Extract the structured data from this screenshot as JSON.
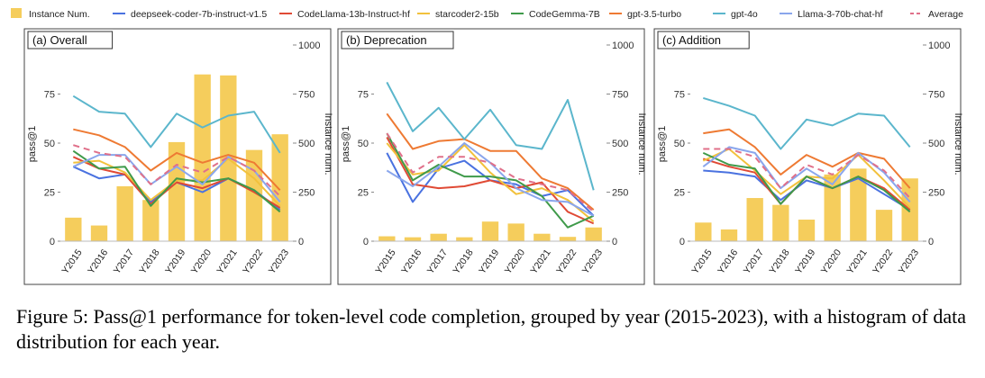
{
  "legend": [
    {
      "name": "Instance Num.",
      "color": "#f5cd5c",
      "kind": "bar"
    },
    {
      "name": "deepseek-coder-7b-instruct-v1.5",
      "color": "#4a72e0",
      "kind": "line"
    },
    {
      "name": "CodeLlama-13b-Instruct-hf",
      "color": "#e04a35",
      "kind": "line"
    },
    {
      "name": "starcoder2-15b",
      "color": "#f2c13c",
      "kind": "line"
    },
    {
      "name": "CodeGemma-7B",
      "color": "#3f9a4a",
      "kind": "line"
    },
    {
      "name": "gpt-3.5-turbo",
      "color": "#ee7a33",
      "kind": "line"
    },
    {
      "name": "gpt-4o",
      "color": "#5bb6cc",
      "kind": "line"
    },
    {
      "name": "Llama-3-70b-chat-hf",
      "color": "#8aa6ec",
      "kind": "line"
    },
    {
      "name": "Average",
      "color": "#e0708a",
      "kind": "dash"
    }
  ],
  "chart_data": [
    {
      "type": "bar+line",
      "title": "(a) Overall",
      "ylabel": "pass@1",
      "y2label": "Instance num.",
      "ylim": [
        0,
        100
      ],
      "y2lim": [
        0,
        1000
      ],
      "yticks": [
        "0",
        "25",
        "50",
        "75"
      ],
      "y2ticks": [
        "0",
        "250",
        "500",
        "750",
        "1000"
      ],
      "categories": [
        "Y2015",
        "Y2016",
        "Y2017",
        "Y2018",
        "Y2019",
        "Y2020",
        "Y2021",
        "Y2022",
        "Y2023"
      ],
      "bars": [
        120,
        80,
        280,
        210,
        505,
        850,
        845,
        465,
        545
      ],
      "series": [
        {
          "name": "deepseek-coder-7b-instruct-v1.5",
          "values": [
            38,
            32,
            34,
            20,
            30,
            25,
            32,
            26,
            16
          ]
        },
        {
          "name": "CodeLlama-13b-Instruct-hf",
          "values": [
            43,
            37,
            34,
            19,
            30,
            27,
            32,
            25,
            17
          ]
        },
        {
          "name": "starcoder2-15b",
          "values": [
            40,
            41,
            35,
            21,
            31,
            31,
            42,
            32,
            18
          ]
        },
        {
          "name": "CodeGemma-7B",
          "values": [
            46,
            37,
            38,
            18,
            32,
            30,
            32,
            26,
            15
          ]
        },
        {
          "name": "gpt-3.5-turbo",
          "values": [
            57,
            54,
            48,
            36,
            45,
            40,
            44,
            40,
            26
          ]
        },
        {
          "name": "gpt-4o",
          "values": [
            74,
            66,
            65,
            48,
            65,
            58,
            64,
            66,
            45
          ]
        },
        {
          "name": "Llama-3-70b-chat-hf",
          "values": [
            38,
            44,
            44,
            29,
            38,
            29,
            43,
            36,
            20
          ]
        },
        {
          "name": "Average",
          "values": [
            49,
            45,
            43,
            29,
            39,
            35,
            43,
            36,
            23
          ]
        }
      ]
    },
    {
      "type": "bar+line",
      "title": "(b) Deprecation",
      "ylabel": "pass@1",
      "y2label": "Instance num.",
      "ylim": [
        0,
        100
      ],
      "y2lim": [
        0,
        1000
      ],
      "yticks": [
        "0",
        "25",
        "50",
        "75"
      ],
      "y2ticks": [
        "0",
        "250",
        "500",
        "750",
        "1000"
      ],
      "categories": [
        "Y2015",
        "Y2016",
        "Y2017",
        "Y2018",
        "Y2019",
        "Y2020",
        "Y2021",
        "Y2022",
        "Y2023"
      ],
      "bars": [
        25,
        20,
        38,
        20,
        100,
        90,
        38,
        22,
        70
      ],
      "series": [
        {
          "name": "deepseek-coder-7b-instruct-v1.5",
          "values": [
            45,
            20,
            37,
            41,
            31,
            29,
            23,
            26,
            13
          ]
        },
        {
          "name": "CodeLlama-13b-Instruct-hf",
          "values": [
            53,
            29,
            27,
            28,
            31,
            27,
            30,
            15,
            9
          ]
        },
        {
          "name": "starcoder2-15b",
          "values": [
            50,
            34,
            36,
            49,
            35,
            24,
            27,
            21,
            10
          ]
        },
        {
          "name": "CodeGemma-7B",
          "values": [
            55,
            31,
            39,
            33,
            33,
            31,
            23,
            7,
            13
          ]
        },
        {
          "name": "gpt-3.5-turbo",
          "values": [
            65,
            47,
            51,
            52,
            46,
            46,
            32,
            27,
            16
          ]
        },
        {
          "name": "gpt-4o",
          "values": [
            81,
            56,
            68,
            52,
            67,
            49,
            47,
            72,
            26
          ]
        },
        {
          "name": "Llama-3-70b-chat-hf",
          "values": [
            36,
            28,
            38,
            50,
            40,
            27,
            21,
            20,
            13
          ]
        },
        {
          "name": "Average",
          "values": [
            55,
            35,
            43,
            43,
            40,
            32,
            29,
            26,
            15
          ]
        }
      ]
    },
    {
      "type": "bar+line",
      "title": "(c) Addition",
      "ylabel": "pass@1",
      "y2label": "Instance num.",
      "ylim": [
        0,
        100
      ],
      "y2lim": [
        0,
        1000
      ],
      "yticks": [
        "0",
        "25",
        "50",
        "75"
      ],
      "y2ticks": [
        "0",
        "250",
        "500",
        "750",
        "1000"
      ],
      "categories": [
        "Y2015",
        "Y2016",
        "Y2017",
        "Y2018",
        "Y2019",
        "Y2020",
        "Y2021",
        "Y2022",
        "Y2023"
      ],
      "bars": [
        95,
        60,
        220,
        185,
        110,
        340,
        370,
        160,
        320
      ],
      "series": [
        {
          "name": "deepseek-coder-7b-instruct-v1.5",
          "values": [
            36,
            35,
            33,
            21,
            31,
            27,
            32,
            24,
            16
          ]
        },
        {
          "name": "CodeLlama-13b-Instruct-hf",
          "values": [
            42,
            38,
            35,
            19,
            33,
            27,
            33,
            27,
            16
          ]
        },
        {
          "name": "starcoder2-15b",
          "values": [
            41,
            47,
            36,
            24,
            33,
            32,
            44,
            31,
            17
          ]
        },
        {
          "name": "CodeGemma-7B",
          "values": [
            45,
            39,
            37,
            19,
            33,
            27,
            33,
            26,
            15
          ]
        },
        {
          "name": "gpt-3.5-turbo",
          "values": [
            55,
            57,
            48,
            34,
            44,
            38,
            45,
            42,
            27
          ]
        },
        {
          "name": "gpt-4o",
          "values": [
            73,
            69,
            64,
            47,
            62,
            59,
            65,
            64,
            48
          ]
        },
        {
          "name": "Llama-3-70b-chat-hf",
          "values": [
            38,
            48,
            45,
            27,
            37,
            29,
            45,
            35,
            20
          ]
        },
        {
          "name": "Average",
          "values": [
            47,
            47,
            43,
            27,
            39,
            34,
            44,
            36,
            22
          ]
        }
      ]
    }
  ],
  "caption": "Figure 5: Pass@1 performance for token-level code completion, grouped by year (2015-2023), with a histogram of data distribution for each year."
}
